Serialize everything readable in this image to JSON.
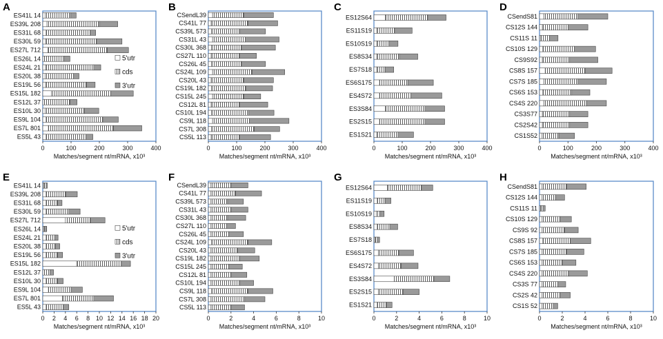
{
  "figure": {
    "xlabel": "Matches/segment nt/mRNA, x10³",
    "legend": [
      "5'utr",
      "cds",
      "3'utr"
    ],
    "colors": {
      "utr5": "#ffffff",
      "cds": "#ffffff",
      "utr3": "#9a9a9a",
      "frame": "#5b8cc9",
      "stroke": "#444444"
    }
  },
  "chart_data": [
    {
      "panel": "A",
      "type": "bar",
      "orientation": "horizontal",
      "stacked": true,
      "categories": [
        "ES41L 14",
        "ES39L 208",
        "ES31L 68",
        "ES30L 59",
        "ES27L 712",
        "ES26L 14",
        "ES24L 21",
        "ES20L 38",
        "ES19L 56",
        "ES15L 182",
        "ES12L 37",
        "ES10L 30",
        "ES9L 104",
        "ES7L 801",
        "ES5L 43"
      ],
      "series": [
        {
          "name": "5'utr",
          "values": [
            8,
            15,
            12,
            10,
            18,
            6,
            10,
            8,
            10,
            30,
            6,
            8,
            12,
            20,
            12
          ]
        },
        {
          "name": "cds",
          "values": [
            90,
            185,
            155,
            180,
            210,
            70,
            170,
            100,
            145,
            210,
            90,
            140,
            200,
            230,
            140
          ]
        },
        {
          "name": "3'utr",
          "values": [
            20,
            65,
            20,
            90,
            75,
            20,
            25,
            20,
            30,
            80,
            25,
            50,
            55,
            100,
            25
          ]
        }
      ],
      "xlim": [
        0,
        400
      ],
      "xticks": [
        0,
        100,
        200,
        300,
        400
      ],
      "legend": true
    },
    {
      "panel": "B",
      "type": "bar",
      "orientation": "horizontal",
      "stacked": true,
      "categories": [
        "CSendL39",
        "CS41L 77",
        "CS39L 573",
        "CS31L 43",
        "CS30L 368",
        "CS27L 110",
        "CS26L 45",
        "CS24L 109",
        "CS20L 43",
        "CS19L 182",
        "CS15L 245",
        "CS12L 81",
        "CS10L 194",
        "CS9L 118",
        "CS7L 308",
        "CS5L 113"
      ],
      "series": [
        {
          "name": "5'utr",
          "values": [
            15,
            10,
            12,
            15,
            12,
            10,
            12,
            15,
            10,
            12,
            15,
            10,
            12,
            15,
            12,
            10
          ]
        },
        {
          "name": "cds",
          "values": [
            110,
            130,
            100,
            115,
            105,
            100,
            105,
            140,
            115,
            120,
            110,
            100,
            130,
            130,
            150,
            100
          ]
        },
        {
          "name": "3'utr",
          "values": [
            105,
            105,
            90,
            120,
            120,
            60,
            85,
            115,
            105,
            95,
            60,
            100,
            90,
            140,
            90,
            110
          ]
        }
      ],
      "xlim": [
        0,
        400
      ],
      "xticks": [
        0,
        100,
        200,
        300,
        400
      ],
      "legend": false
    },
    {
      "panel": "C",
      "type": "bar",
      "orientation": "horizontal",
      "stacked": true,
      "categories": [
        "ES12S64",
        "ES11S19",
        "ES10S19",
        "ES8S34",
        "ES7S18",
        "ES6S175",
        "ES4S72",
        "ES3S84",
        "ES2S15",
        "ES1S21"
      ],
      "series": [
        {
          "name": "5'utr",
          "values": [
            40,
            10,
            10,
            10,
            10,
            20,
            20,
            40,
            20,
            10
          ]
        },
        {
          "name": "cds",
          "values": [
            150,
            65,
            45,
            80,
            30,
            100,
            110,
            140,
            160,
            75
          ]
        },
        {
          "name": "3'utr",
          "values": [
            65,
            60,
            30,
            65,
            30,
            90,
            110,
            70,
            70,
            55
          ]
        }
      ],
      "xlim": [
        0,
        400
      ],
      "xticks": [
        0,
        100,
        200,
        300,
        400
      ],
      "legend": false
    },
    {
      "panel": "D",
      "type": "bar",
      "orientation": "horizontal",
      "stacked": true,
      "categories": [
        "CSendS81",
        "CS12S 144",
        "CS11S 11",
        "CS10S 129",
        "CS9S92",
        "CS8S 157",
        "CS7S 185",
        "CS6S 153",
        "CS4S 220",
        "CS3S77",
        "CS2S42",
        "CS1S52"
      ],
      "series": [
        {
          "name": "5'utr",
          "values": [
            15,
            10,
            5,
            12,
            10,
            20,
            15,
            12,
            15,
            10,
            10,
            8
          ]
        },
        {
          "name": "cds",
          "values": [
            120,
            90,
            30,
            110,
            95,
            140,
            120,
            100,
            150,
            95,
            95,
            60
          ]
        },
        {
          "name": "3'utr",
          "values": [
            105,
            70,
            30,
            75,
            100,
            95,
            100,
            65,
            70,
            65,
            65,
            55
          ]
        }
      ],
      "xlim": [
        0,
        400
      ],
      "xticks": [
        0,
        100,
        200,
        300,
        400
      ],
      "legend": false
    },
    {
      "panel": "E",
      "type": "bar",
      "orientation": "horizontal",
      "stacked": true,
      "categories": [
        "ES41L 14",
        "ES39L 208",
        "ES31L 68",
        "ES30L 59",
        "ES27L 712",
        "ES26L 14",
        "ES24L 21",
        "ES20L 38",
        "ES19L 56",
        "ES15L 182",
        "ES12L 37",
        "ES10L 30",
        "ES9L 104",
        "ES7L 801",
        "ES5L 43"
      ],
      "series": [
        {
          "name": "5'utr",
          "values": [
            0.2,
            0.6,
            0.6,
            0.6,
            4,
            0.2,
            0.6,
            0.6,
            0.6,
            6,
            0.3,
            0.6,
            1,
            3.5,
            0.6
          ]
        },
        {
          "name": "cds",
          "values": [
            0.4,
            3.5,
            2,
            4,
            4.5,
            0.3,
            1.5,
            1.6,
            2,
            8,
            1,
            2,
            4,
            5.5,
            3
          ]
        },
        {
          "name": "3'utr",
          "values": [
            0.2,
            2,
            0.8,
            2,
            2.5,
            0.2,
            0.6,
            0.8,
            0.9,
            1.5,
            0.6,
            1,
            2,
            3.5,
            1
          ]
        }
      ],
      "xlim": [
        0,
        20
      ],
      "xticks": [
        0,
        2,
        4,
        6,
        8,
        10,
        12,
        14,
        16,
        18,
        20
      ],
      "legend": true
    },
    {
      "panel": "F",
      "type": "bar",
      "orientation": "horizontal",
      "stacked": true,
      "categories": [
        "CSendL39",
        "CS41L 77",
        "CS39L 573",
        "CS31L 43",
        "CS30L 368",
        "CS27L 110",
        "CS26L 45",
        "CS24L 109",
        "CS20L 43",
        "CS19L 182",
        "CS15L 245",
        "CS12L 81",
        "CS10L 194",
        "CS9L 118",
        "CS7L 308",
        "CS5L 113"
      ],
      "series": [
        {
          "name": "5'utr",
          "values": [
            0.2,
            0.2,
            0.2,
            0.2,
            0.2,
            0.2,
            0.2,
            0.3,
            0.2,
            0.2,
            0.2,
            0.2,
            0.2,
            0.3,
            0.2,
            0.2
          ]
        },
        {
          "name": "cds",
          "values": [
            1.8,
            2.2,
            1.5,
            1.8,
            1.5,
            1.4,
            1.6,
            3.2,
            2.4,
            2.6,
            1.6,
            1.8,
            2.6,
            3.2,
            3,
            1.8
          ]
        },
        {
          "name": "3'utr",
          "values": [
            1.5,
            2.3,
            1.4,
            1.5,
            1.6,
            0.8,
            1.3,
            2.1,
            1.5,
            1.7,
            1.2,
            1.4,
            1.2,
            2.2,
            1.8,
            1.2
          ]
        }
      ],
      "xlim": [
        0,
        10
      ],
      "xticks": [
        0,
        2,
        4,
        6,
        8,
        10
      ],
      "legend": false
    },
    {
      "panel": "G",
      "type": "bar",
      "orientation": "horizontal",
      "stacked": true,
      "categories": [
        "ES12S64",
        "ES11S19",
        "ES10S19",
        "ES8S34",
        "ES7S18",
        "ES6S175",
        "ES4S72",
        "ES3S84",
        "ES2S15",
        "ES1S21"
      ],
      "series": [
        {
          "name": "5'utr",
          "values": [
            1.2,
            0.3,
            0.2,
            0.3,
            0.1,
            0.4,
            0.4,
            1.8,
            0.4,
            0.3
          ]
        },
        {
          "name": "cds",
          "values": [
            3,
            0.7,
            0.4,
            1.1,
            0.2,
            1.8,
            2,
            3.5,
            2.2,
            0.8
          ]
        },
        {
          "name": "3'utr",
          "values": [
            1,
            0.5,
            0.3,
            0.7,
            0.2,
            1.3,
            1.5,
            1.4,
            1.4,
            0.5
          ]
        }
      ],
      "xlim": [
        0,
        10
      ],
      "xticks": [
        0,
        2,
        4,
        6,
        8,
        10
      ],
      "legend": false
    },
    {
      "panel": "H",
      "type": "bar",
      "orientation": "horizontal",
      "stacked": true,
      "categories": [
        "CSendS81",
        "CS12S 144",
        "CS11S 11",
        "CS10S 129",
        "CS9S 92",
        "CS8S 157",
        "CS7S 185",
        "CS6S 153",
        "CS4S 220",
        "CS3S 77",
        "CS2S 42",
        "CS1S 52"
      ],
      "series": [
        {
          "name": "5'utr",
          "values": [
            0.2,
            0.2,
            0.1,
            0.2,
            0.2,
            0.3,
            0.2,
            0.2,
            0.2,
            0.2,
            0.2,
            0.2
          ]
        },
        {
          "name": "cds",
          "values": [
            2.2,
            1.2,
            0.2,
            1.6,
            2,
            2.4,
            2.2,
            1.8,
            2.4,
            1.4,
            1.6,
            1
          ]
        },
        {
          "name": "3'utr",
          "values": [
            1.7,
            0.8,
            0.2,
            1,
            1.2,
            1.8,
            1.5,
            1.2,
            1.6,
            0.7,
            0.9,
            0.4
          ]
        }
      ],
      "xlim": [
        0,
        10
      ],
      "xticks": [
        0,
        2,
        4,
        6,
        8,
        10
      ],
      "legend": false
    }
  ]
}
